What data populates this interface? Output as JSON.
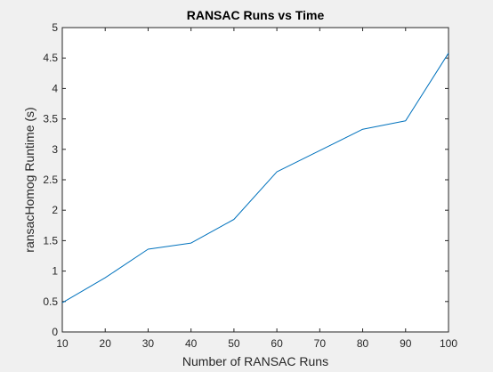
{
  "chart_data": {
    "type": "line",
    "title": "RANSAC Runs vs Time",
    "xlabel": "Number of RANSAC Runs",
    "ylabel": "ransacHomog Runtime (s)",
    "xlim": [
      10,
      100
    ],
    "ylim": [
      0,
      5
    ],
    "xticks": [
      "10",
      "20",
      "30",
      "40",
      "50",
      "60",
      "70",
      "80",
      "90",
      "100"
    ],
    "yticks": [
      "0",
      "0.5",
      "1",
      "1.5",
      "2",
      "2.5",
      "3",
      "3.5",
      "4",
      "4.5",
      "5"
    ],
    "grid": false,
    "series": [
      {
        "color": "#0072bd",
        "x": [
          10,
          20,
          30,
          40,
          50,
          60,
          70,
          80,
          90,
          100
        ],
        "y": [
          0.48,
          0.89,
          1.36,
          1.46,
          1.85,
          2.63,
          2.98,
          3.33,
          3.47,
          4.58
        ]
      }
    ]
  }
}
